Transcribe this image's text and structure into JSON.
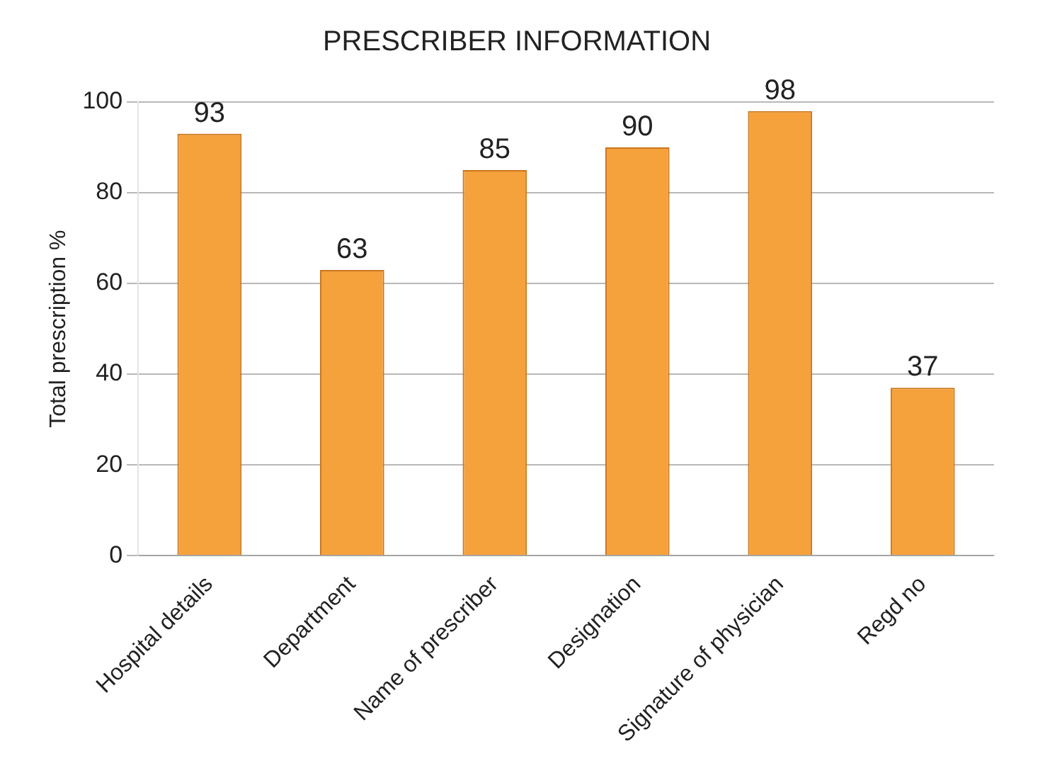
{
  "chart_data": {
    "type": "bar",
    "title": "PRESCRIBER INFORMATION",
    "ylabel": "Total prescription %",
    "categories": [
      "Hospital details",
      "Department",
      "Name of prescriber",
      "Designation",
      "Signature of physician",
      "Regd no"
    ],
    "values": [
      93,
      63,
      85,
      90,
      98,
      37
    ],
    "color": "#f6a23c",
    "ylim": [
      0,
      100
    ],
    "yticks": [
      0,
      20,
      40,
      60,
      80,
      100
    ],
    "grid": "y",
    "legend": false,
    "data_labels": true
  }
}
